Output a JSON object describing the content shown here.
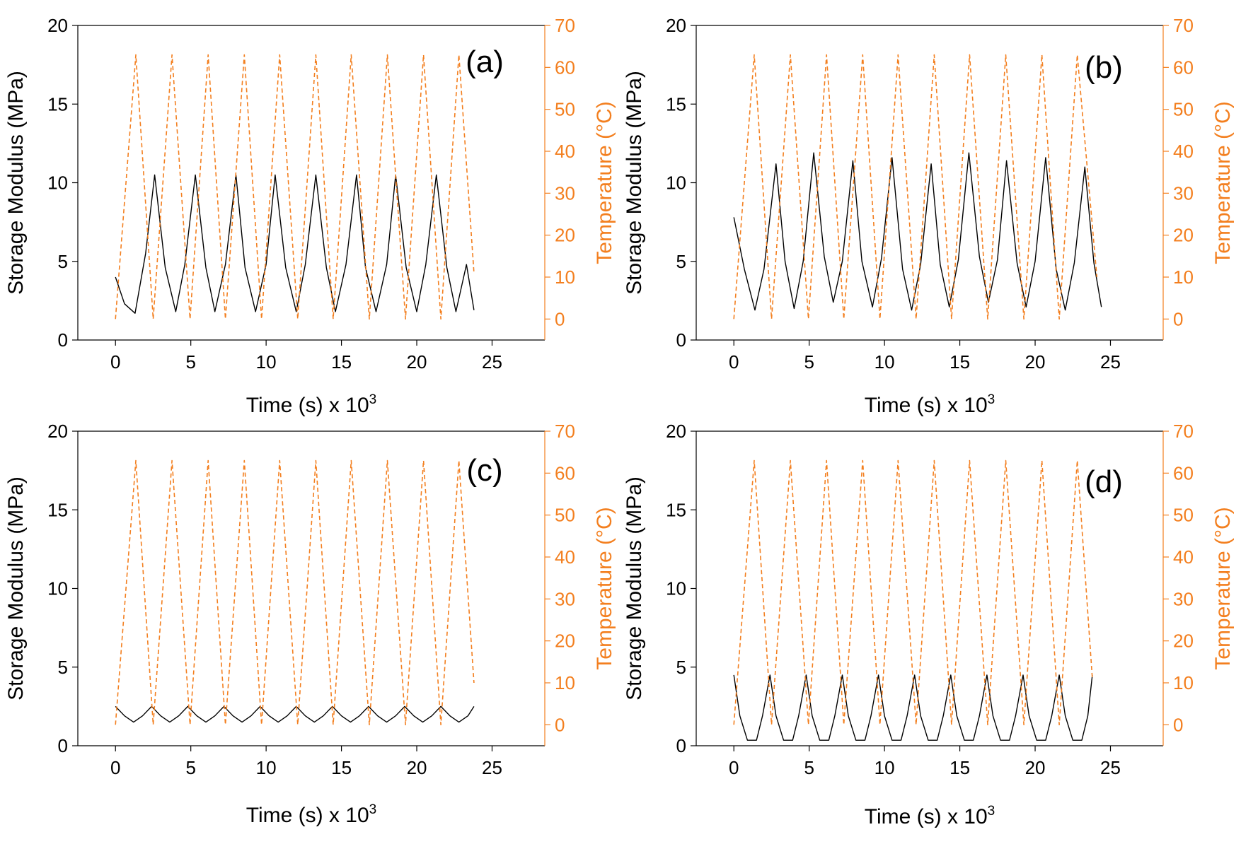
{
  "colors": {
    "modulus": "#000000",
    "temperature": "#F37F1F",
    "axis": "#000000"
  },
  "chart_data": [
    {
      "type": "line",
      "panel_label": "(a)",
      "xlabel": "Time (s) x 10",
      "xlabel_exp": "3",
      "ylabel": "Storage Modulus (MPa)",
      "y2label": "Temperature (°C)",
      "xlim": [
        -2.5,
        28.5
      ],
      "xticks": [
        0,
        5,
        10,
        15,
        20,
        25
      ],
      "xtick_labels": [
        "0",
        "5",
        "10",
        "15",
        "20",
        "25"
      ],
      "ylim": [
        0,
        20
      ],
      "yticks": [
        0,
        5,
        10,
        15,
        20
      ],
      "ytick_labels": [
        "0",
        "5",
        "10",
        "15",
        "20"
      ],
      "y2lim": [
        -5,
        70
      ],
      "y2ticks": [
        0,
        10,
        20,
        30,
        40,
        50,
        60,
        70
      ],
      "y2tick_labels": [
        "0",
        "10",
        "20",
        "30",
        "40",
        "50",
        "60",
        "70"
      ],
      "series": [
        {
          "name": "Storage Modulus",
          "axis": "left",
          "style": "solid",
          "x": [
            0,
            0.6,
            1.3,
            2.0,
            2.6,
            3.3,
            4.0,
            4.6,
            5.3,
            6.0,
            6.6,
            7.3,
            8.0,
            8.6,
            9.3,
            10.0,
            10.6,
            11.3,
            12.0,
            12.6,
            13.3,
            14.0,
            14.6,
            15.3,
            16.0,
            16.6,
            17.3,
            18.0,
            18.6,
            19.3,
            20.0,
            20.6,
            21.3,
            22.0,
            22.6,
            23.3,
            23.8
          ],
          "y": [
            4.0,
            2.3,
            1.7,
            5.5,
            10.5,
            4.6,
            1.8,
            4.8,
            10.5,
            4.6,
            1.8,
            4.8,
            10.5,
            4.6,
            1.8,
            4.8,
            10.5,
            4.6,
            1.8,
            4.8,
            10.5,
            4.6,
            1.8,
            4.8,
            10.5,
            4.6,
            1.8,
            4.8,
            10.5,
            4.6,
            1.8,
            4.8,
            10.5,
            4.6,
            1.8,
            4.8,
            1.9
          ]
        },
        {
          "name": "Temperature",
          "axis": "right",
          "style": "dashed",
          "x": [
            0,
            1.35,
            2.5,
            3.75,
            4.95,
            6.15,
            7.3,
            8.55,
            9.7,
            10.9,
            12.1,
            13.3,
            14.45,
            15.65,
            16.85,
            18.05,
            19.25,
            20.45,
            21.6,
            22.8,
            23.8
          ],
          "y": [
            0,
            63,
            0,
            63,
            0,
            63,
            0,
            63,
            0,
            63,
            0,
            63,
            0,
            63,
            0,
            63,
            0,
            63,
            0,
            63,
            11
          ]
        }
      ]
    },
    {
      "type": "line",
      "panel_label": "(b)",
      "xlabel": "Time (s) x 10",
      "xlabel_exp": "3",
      "ylabel": "Storage Modulus (MPa)",
      "y2label": "Temperature (°C)",
      "xlim": [
        -2.5,
        28.5
      ],
      "xticks": [
        0,
        5,
        10,
        15,
        20,
        25
      ],
      "xtick_labels": [
        "0",
        "5",
        "10",
        "15",
        "20",
        "25"
      ],
      "ylim": [
        0,
        20
      ],
      "yticks": [
        0,
        5,
        10,
        15,
        20
      ],
      "ytick_labels": [
        "0",
        "5",
        "10",
        "15",
        "20"
      ],
      "y2lim": [
        -5,
        70
      ],
      "y2ticks": [
        0,
        10,
        20,
        30,
        40,
        50,
        60,
        70
      ],
      "y2tick_labels": [
        "0",
        "10",
        "20",
        "30",
        "40",
        "50",
        "60",
        "70"
      ],
      "series": [
        {
          "name": "Storage Modulus",
          "axis": "left",
          "style": "solid",
          "x": [
            0,
            0.7,
            1.4,
            2.0,
            2.8,
            3.4,
            4.0,
            4.6,
            5.3,
            6.0,
            6.6,
            7.2,
            7.9,
            8.5,
            9.2,
            9.8,
            10.5,
            11.2,
            11.8,
            12.4,
            13.1,
            13.7,
            14.3,
            14.9,
            15.6,
            16.3,
            16.9,
            17.5,
            18.1,
            18.8,
            19.4,
            20.0,
            20.7,
            21.4,
            22.0,
            22.6,
            23.3,
            23.9,
            24.4
          ],
          "y": [
            7.8,
            4.5,
            1.9,
            4.5,
            11.2,
            5.0,
            2.0,
            5.0,
            11.9,
            5.3,
            2.4,
            5.0,
            11.4,
            5.0,
            2.1,
            5.2,
            11.6,
            4.5,
            1.9,
            4.8,
            11.2,
            4.8,
            2.1,
            5.1,
            11.9,
            5.3,
            2.4,
            5.1,
            11.4,
            4.9,
            2.1,
            5.0,
            11.6,
            4.5,
            1.9,
            4.9,
            11.0,
            4.9,
            2.1
          ]
        },
        {
          "name": "Temperature",
          "axis": "right",
          "style": "dashed",
          "x": [
            0,
            1.35,
            2.5,
            3.75,
            4.95,
            6.15,
            7.3,
            8.55,
            9.7,
            10.9,
            12.1,
            13.3,
            14.45,
            15.65,
            16.85,
            18.05,
            19.25,
            20.45,
            21.6,
            22.8,
            24.1
          ],
          "y": [
            0,
            63,
            0,
            63,
            0,
            63,
            0,
            63,
            0,
            63,
            0,
            63,
            0,
            63,
            0,
            63,
            0,
            63,
            0,
            63,
            10
          ]
        }
      ]
    },
    {
      "type": "line",
      "panel_label": "(c)",
      "xlabel": "Time (s) x 10",
      "xlabel_exp": "3",
      "ylabel": "Storage Modulus (MPa)",
      "y2label": "Temperature (°C)",
      "xlim": [
        -2.5,
        28.5
      ],
      "xticks": [
        0,
        5,
        10,
        15,
        20,
        25
      ],
      "xtick_labels": [
        "0",
        "5",
        "10",
        "15",
        "20",
        "25"
      ],
      "ylim": [
        0,
        20
      ],
      "yticks": [
        0,
        5,
        10,
        15,
        20
      ],
      "ytick_labels": [
        "0",
        "5",
        "10",
        "15",
        "20"
      ],
      "y2lim": [
        -5,
        70
      ],
      "y2ticks": [
        0,
        10,
        20,
        30,
        40,
        50,
        60,
        70
      ],
      "y2tick_labels": [
        "0",
        "10",
        "20",
        "30",
        "40",
        "50",
        "60",
        "70"
      ],
      "series": [
        {
          "name": "Storage Modulus",
          "axis": "left",
          "style": "solid",
          "x": [
            0,
            0.6,
            1.2,
            1.8,
            2.4,
            3.0,
            3.6,
            4.2,
            4.8,
            5.4,
            6.0,
            6.6,
            7.2,
            7.8,
            8.4,
            9.0,
            9.6,
            10.2,
            10.8,
            11.4,
            12.0,
            12.6,
            13.2,
            13.8,
            14.4,
            15.0,
            15.6,
            16.2,
            16.8,
            17.4,
            18.0,
            18.6,
            19.2,
            19.8,
            20.4,
            21.0,
            21.6,
            22.2,
            22.8,
            23.4,
            23.8
          ],
          "y": [
            2.5,
            1.9,
            1.5,
            1.9,
            2.5,
            1.9,
            1.5,
            1.9,
            2.5,
            1.9,
            1.5,
            1.9,
            2.5,
            1.9,
            1.5,
            1.9,
            2.5,
            1.9,
            1.5,
            1.9,
            2.5,
            1.9,
            1.5,
            1.9,
            2.5,
            1.9,
            1.5,
            1.9,
            2.5,
            1.9,
            1.5,
            1.9,
            2.5,
            1.9,
            1.5,
            1.9,
            2.5,
            1.9,
            1.5,
            1.9,
            2.5
          ]
        },
        {
          "name": "Temperature",
          "axis": "right",
          "style": "dashed",
          "x": [
            0,
            1.35,
            2.5,
            3.75,
            4.95,
            6.15,
            7.3,
            8.55,
            9.7,
            10.9,
            12.1,
            13.3,
            14.45,
            15.65,
            16.85,
            18.05,
            19.25,
            20.45,
            21.6,
            22.8,
            23.8
          ],
          "y": [
            0,
            63,
            0,
            63,
            0,
            63,
            0,
            63,
            0,
            63,
            0,
            63,
            0,
            63,
            0,
            63,
            0,
            63,
            0,
            63,
            10
          ]
        }
      ]
    },
    {
      "type": "line",
      "panel_label": "(d)",
      "xlabel": "Time (s) x 10",
      "xlabel_exp": "3",
      "ylabel": "Storage Modulus (MPa)",
      "y2label": "Temperature (°C)",
      "xlim": [
        -2.5,
        28.5
      ],
      "xticks": [
        0,
        5,
        10,
        15,
        20,
        25
      ],
      "xtick_labels": [
        "0",
        "5",
        "10",
        "15",
        "20",
        "25"
      ],
      "ylim": [
        0,
        20
      ],
      "yticks": [
        0,
        5,
        10,
        15,
        20
      ],
      "ytick_labels": [
        "0",
        "5",
        "10",
        "15",
        "20"
      ],
      "y2lim": [
        -5,
        70
      ],
      "y2ticks": [
        0,
        10,
        20,
        30,
        40,
        50,
        60,
        70
      ],
      "y2tick_labels": [
        "0",
        "10",
        "20",
        "30",
        "40",
        "50",
        "60",
        "70"
      ],
      "series": [
        {
          "name": "Storage Modulus",
          "axis": "left",
          "style": "solid",
          "x": [
            0,
            0.4,
            0.9,
            1.5,
            1.9,
            2.4,
            2.8,
            3.3,
            3.9,
            4.3,
            4.8,
            5.2,
            5.7,
            6.3,
            6.7,
            7.2,
            7.6,
            8.1,
            8.7,
            9.1,
            9.6,
            10.0,
            10.5,
            11.1,
            11.5,
            12.0,
            12.4,
            12.9,
            13.5,
            13.9,
            14.4,
            14.8,
            15.3,
            15.9,
            16.3,
            16.8,
            17.2,
            17.7,
            18.3,
            18.7,
            19.2,
            19.6,
            20.1,
            20.7,
            21.1,
            21.6,
            22.0,
            22.5,
            23.1,
            23.5,
            23.8
          ],
          "y": [
            4.5,
            1.9,
            0.35,
            0.35,
            1.9,
            4.5,
            1.9,
            0.35,
            0.35,
            1.9,
            4.5,
            1.9,
            0.35,
            0.35,
            1.9,
            4.5,
            1.9,
            0.35,
            0.35,
            1.9,
            4.5,
            1.9,
            0.35,
            0.35,
            1.9,
            4.5,
            1.9,
            0.35,
            0.35,
            1.9,
            4.5,
            1.9,
            0.35,
            0.35,
            1.9,
            4.5,
            1.9,
            0.35,
            0.35,
            1.9,
            4.5,
            1.9,
            0.35,
            0.35,
            1.9,
            4.5,
            1.9,
            0.35,
            0.35,
            1.9,
            4.5
          ]
        },
        {
          "name": "Temperature",
          "axis": "right",
          "style": "dashed",
          "x": [
            0,
            1.35,
            2.5,
            3.75,
            4.95,
            6.15,
            7.3,
            8.55,
            9.7,
            10.9,
            12.1,
            13.3,
            14.45,
            15.65,
            16.85,
            18.05,
            19.25,
            20.45,
            21.6,
            22.8,
            23.8
          ],
          "y": [
            0,
            63,
            0,
            63,
            0,
            63,
            0,
            63,
            0,
            63,
            0,
            63,
            0,
            63,
            0,
            63,
            0,
            63,
            0,
            63,
            11
          ]
        }
      ]
    }
  ]
}
